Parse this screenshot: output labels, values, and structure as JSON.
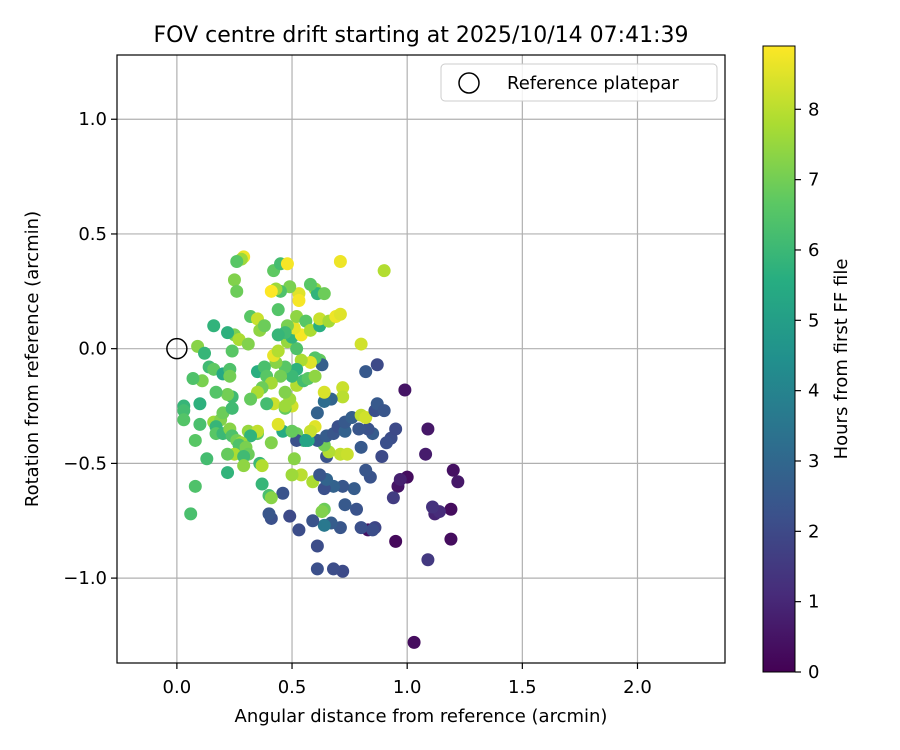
{
  "chart_data": {
    "type": "scatter",
    "title": "FOV centre drift starting at 2025/10/14 07:41:39",
    "xlabel": "Angular distance from reference (arcmin)",
    "ylabel": "Rotation from reference (arcmin)",
    "xlim": [
      -0.26,
      2.38
    ],
    "ylim": [
      -1.37,
      1.28
    ],
    "xticks": [
      0.0,
      0.5,
      1.0,
      1.5,
      2.0
    ],
    "xtick_labels": [
      "0.0",
      "0.5",
      "1.0",
      "1.5",
      "2.0"
    ],
    "yticks": [
      1.0,
      0.5,
      0.0,
      -0.5,
      -1.0
    ],
    "ytick_labels": [
      "1.0",
      "0.5",
      "0.0",
      "−0.5",
      "−1.0"
    ],
    "grid": true,
    "legend": {
      "label": "Reference platepar",
      "position": "top-right"
    },
    "reference_point": {
      "x": 0.0,
      "y": 0.0
    },
    "colorbar": {
      "label": "Hours from first FF file",
      "min": 0,
      "max": 8.9,
      "ticks": [
        0,
        1,
        2,
        3,
        4,
        5,
        6,
        7,
        8
      ],
      "tick_labels": [
        "0",
        "1",
        "2",
        "3",
        "4",
        "5",
        "6",
        "7",
        "8"
      ],
      "colormap": "viridis"
    },
    "points": [
      {
        "x": 1.03,
        "y": -1.28,
        "h": 0.3
      },
      {
        "x": 0.95,
        "y": -0.84,
        "h": 0.2
      },
      {
        "x": 1.19,
        "y": -0.83,
        "h": 0.3
      },
      {
        "x": 1.09,
        "y": -0.92,
        "h": 1.5
      },
      {
        "x": 1.19,
        "y": -0.7,
        "h": 0.3
      },
      {
        "x": 1.12,
        "y": -0.72,
        "h": 0.9
      },
      {
        "x": 1.14,
        "y": -0.71,
        "h": 1.1
      },
      {
        "x": 1.11,
        "y": -0.69,
        "h": 1.3
      },
      {
        "x": 1.2,
        "y": -0.53,
        "h": 0.4
      },
      {
        "x": 1.22,
        "y": -0.58,
        "h": 0.6
      },
      {
        "x": 0.96,
        "y": -0.6,
        "h": 0.5
      },
      {
        "x": 1.0,
        "y": -0.56,
        "h": 0.3
      },
      {
        "x": 0.97,
        "y": -0.57,
        "h": 0.8
      },
      {
        "x": 1.08,
        "y": -0.46,
        "h": 0.7
      },
      {
        "x": 1.09,
        "y": -0.35,
        "h": 0.6
      },
      {
        "x": 0.99,
        "y": -0.18,
        "h": 0.5
      },
      {
        "x": 0.94,
        "y": -0.65,
        "h": 1.6
      },
      {
        "x": 0.86,
        "y": -0.78,
        "h": 1.9
      },
      {
        "x": 0.83,
        "y": -0.79,
        "h": 0.4
      },
      {
        "x": 0.85,
        "y": -0.79,
        "h": 2.1
      },
      {
        "x": 0.8,
        "y": -0.78,
        "h": 2.2
      },
      {
        "x": 0.78,
        "y": -0.7,
        "h": 2.3
      },
      {
        "x": 0.72,
        "y": -0.97,
        "h": 2.0
      },
      {
        "x": 0.68,
        "y": -0.96,
        "h": 2.1
      },
      {
        "x": 0.61,
        "y": -0.96,
        "h": 2.2
      },
      {
        "x": 0.61,
        "y": -0.86,
        "h": 2.1
      },
      {
        "x": 0.71,
        "y": -0.78,
        "h": 2.4
      },
      {
        "x": 0.67,
        "y": -0.76,
        "h": 2.6
      },
      {
        "x": 0.64,
        "y": -0.77,
        "h": 3.6
      },
      {
        "x": 0.64,
        "y": -0.7,
        "h": 6.9
      },
      {
        "x": 0.59,
        "y": -0.75,
        "h": 2.3
      },
      {
        "x": 0.53,
        "y": -0.79,
        "h": 2.1
      },
      {
        "x": 0.49,
        "y": -0.73,
        "h": 2.0
      },
      {
        "x": 0.41,
        "y": -0.74,
        "h": 2.2
      },
      {
        "x": 0.4,
        "y": -0.72,
        "h": 2.4
      },
      {
        "x": 0.46,
        "y": -0.63,
        "h": 2.3
      },
      {
        "x": 0.4,
        "y": -0.64,
        "h": 6.3
      },
      {
        "x": 0.37,
        "y": -0.59,
        "h": 5.9
      },
      {
        "x": 0.73,
        "y": -0.68,
        "h": 2.5
      },
      {
        "x": 0.77,
        "y": -0.61,
        "h": 2.6
      },
      {
        "x": 0.72,
        "y": -0.6,
        "h": 2.4
      },
      {
        "x": 0.68,
        "y": -0.6,
        "h": 2.8
      },
      {
        "x": 0.64,
        "y": -0.61,
        "h": 2.2
      },
      {
        "x": 0.65,
        "y": -0.57,
        "h": 2.9
      },
      {
        "x": 0.59,
        "y": -0.58,
        "h": 7.8
      },
      {
        "x": 0.62,
        "y": -0.55,
        "h": 2.4
      },
      {
        "x": 0.54,
        "y": -0.55,
        "h": 8.0
      },
      {
        "x": 0.5,
        "y": -0.55,
        "h": 7.6
      },
      {
        "x": 0.84,
        "y": -0.56,
        "h": 2.3
      },
      {
        "x": 0.82,
        "y": -0.53,
        "h": 2.4
      },
      {
        "x": 0.89,
        "y": -0.47,
        "h": 2.0
      },
      {
        "x": 0.93,
        "y": -0.39,
        "h": 2.1
      },
      {
        "x": 0.95,
        "y": -0.35,
        "h": 2.0
      },
      {
        "x": 0.91,
        "y": -0.41,
        "h": 2.2
      },
      {
        "x": 0.85,
        "y": -0.37,
        "h": 2.6
      },
      {
        "x": 0.83,
        "y": -0.35,
        "h": 2.3
      },
      {
        "x": 0.79,
        "y": -0.35,
        "h": 2.4
      },
      {
        "x": 0.8,
        "y": -0.43,
        "h": 2.5
      },
      {
        "x": 0.71,
        "y": -0.46,
        "h": 8.1
      },
      {
        "x": 0.74,
        "y": -0.46,
        "h": 8.2
      },
      {
        "x": 0.65,
        "y": -0.47,
        "h": 2.3
      },
      {
        "x": 0.66,
        "y": -0.45,
        "h": 7.9
      },
      {
        "x": 0.64,
        "y": -0.42,
        "h": 7.0
      },
      {
        "x": 0.61,
        "y": -0.4,
        "h": 2.5
      },
      {
        "x": 0.57,
        "y": -0.4,
        "h": 5.4
      },
      {
        "x": 0.55,
        "y": -0.4,
        "h": 6.0
      },
      {
        "x": 0.52,
        "y": -0.37,
        "h": 6.9
      },
      {
        "x": 0.52,
        "y": -0.4,
        "h": 2.2
      },
      {
        "x": 0.51,
        "y": -0.48,
        "h": 7.3
      },
      {
        "x": 0.65,
        "y": -0.38,
        "h": 2.6
      },
      {
        "x": 0.68,
        "y": -0.37,
        "h": 2.4
      },
      {
        "x": 0.7,
        "y": -0.34,
        "h": 2.2
      },
      {
        "x": 0.73,
        "y": -0.36,
        "h": 2.8
      },
      {
        "x": 0.73,
        "y": -0.32,
        "h": 2.5
      },
      {
        "x": 0.76,
        "y": -0.3,
        "h": 2.7
      },
      {
        "x": 0.8,
        "y": -0.29,
        "h": 8.1
      },
      {
        "x": 0.82,
        "y": -0.3,
        "h": 8.3
      },
      {
        "x": 0.86,
        "y": -0.27,
        "h": 2.2
      },
      {
        "x": 0.87,
        "y": -0.24,
        "h": 2.5
      },
      {
        "x": 0.9,
        "y": -0.27,
        "h": 2.4
      },
      {
        "x": 0.87,
        "y": -0.07,
        "h": 2.0
      },
      {
        "x": 0.82,
        "y": -0.1,
        "h": 2.5
      },
      {
        "x": 0.72,
        "y": -0.17,
        "h": 8.2
      },
      {
        "x": 0.72,
        "y": -0.21,
        "h": 8.0
      },
      {
        "x": 0.67,
        "y": -0.22,
        "h": 2.9
      },
      {
        "x": 0.64,
        "y": -0.23,
        "h": 3.2
      },
      {
        "x": 0.64,
        "y": -0.19,
        "h": 8.4
      },
      {
        "x": 0.61,
        "y": -0.28,
        "h": 2.8
      },
      {
        "x": 0.6,
        "y": -0.34,
        "h": 8.5
      },
      {
        "x": 0.58,
        "y": -0.36,
        "h": 8.2
      },
      {
        "x": 0.56,
        "y": -0.4,
        "h": 5.2
      },
      {
        "x": 0.5,
        "y": -0.25,
        "h": 8.3
      },
      {
        "x": 0.49,
        "y": -0.22,
        "h": 7.6
      },
      {
        "x": 0.47,
        "y": -0.19,
        "h": 7.2
      },
      {
        "x": 0.47,
        "y": -0.26,
        "h": 6.8
      },
      {
        "x": 0.52,
        "y": -0.16,
        "h": 7.9
      },
      {
        "x": 0.55,
        "y": -0.14,
        "h": 6.2
      },
      {
        "x": 0.57,
        "y": -0.13,
        "h": 6.6
      },
      {
        "x": 0.6,
        "y": -0.12,
        "h": 7.4
      },
      {
        "x": 0.62,
        "y": -0.05,
        "h": 6.8
      },
      {
        "x": 0.63,
        "y": -0.07,
        "h": 2.7
      },
      {
        "x": 0.6,
        "y": -0.04,
        "h": 6.5
      },
      {
        "x": 0.58,
        "y": -0.06,
        "h": 8.5
      },
      {
        "x": 0.54,
        "y": -0.05,
        "h": 7.8
      },
      {
        "x": 0.52,
        "y": -0.09,
        "h": 5.7
      },
      {
        "x": 0.5,
        "y": -0.12,
        "h": 6.0
      },
      {
        "x": 0.47,
        "y": -0.08,
        "h": 6.6
      },
      {
        "x": 0.45,
        "y": -0.12,
        "h": 7.0
      },
      {
        "x": 0.43,
        "y": -0.06,
        "h": 7.3
      },
      {
        "x": 0.42,
        "y": -0.03,
        "h": 8.6
      },
      {
        "x": 0.44,
        "y": -0.01,
        "h": 7.9
      },
      {
        "x": 0.48,
        "y": 0.03,
        "h": 7.5
      },
      {
        "x": 0.52,
        "y": 0.0,
        "h": 6.4
      },
      {
        "x": 0.5,
        "y": 0.05,
        "h": 5.8
      },
      {
        "x": 0.54,
        "y": 0.06,
        "h": 8.8
      },
      {
        "x": 0.51,
        "y": 0.09,
        "h": 8.6
      },
      {
        "x": 0.48,
        "y": 0.1,
        "h": 7.1
      },
      {
        "x": 0.47,
        "y": 0.07,
        "h": 6.1
      },
      {
        "x": 0.44,
        "y": 0.06,
        "h": 5.9
      },
      {
        "x": 0.52,
        "y": 0.14,
        "h": 7.4
      },
      {
        "x": 0.56,
        "y": 0.12,
        "h": 6.6
      },
      {
        "x": 0.58,
        "y": 0.08,
        "h": 7.8
      },
      {
        "x": 0.62,
        "y": 0.1,
        "h": 5.6
      },
      {
        "x": 0.62,
        "y": 0.13,
        "h": 8.2
      },
      {
        "x": 0.66,
        "y": 0.12,
        "h": 7.7
      },
      {
        "x": 0.69,
        "y": 0.14,
        "h": 8.7
      },
      {
        "x": 0.71,
        "y": 0.15,
        "h": 8.5
      },
      {
        "x": 0.8,
        "y": 0.02,
        "h": 8.3
      },
      {
        "x": 0.6,
        "y": 0.26,
        "h": 7.4
      },
      {
        "x": 0.61,
        "y": 0.24,
        "h": 5.8
      },
      {
        "x": 0.64,
        "y": 0.24,
        "h": 6.9
      },
      {
        "x": 0.58,
        "y": 0.28,
        "h": 6.6
      },
      {
        "x": 0.53,
        "y": 0.24,
        "h": 8.5
      },
      {
        "x": 0.53,
        "y": 0.21,
        "h": 8.8
      },
      {
        "x": 0.49,
        "y": 0.27,
        "h": 7.1
      },
      {
        "x": 0.45,
        "y": 0.25,
        "h": 6.4
      },
      {
        "x": 0.43,
        "y": 0.26,
        "h": 7.6
      },
      {
        "x": 0.41,
        "y": 0.25,
        "h": 8.9
      },
      {
        "x": 0.44,
        "y": 0.17,
        "h": 6.5
      },
      {
        "x": 0.42,
        "y": 0.34,
        "h": 6.7
      },
      {
        "x": 0.45,
        "y": 0.37,
        "h": 6.2
      },
      {
        "x": 0.48,
        "y": 0.37,
        "h": 8.8
      },
      {
        "x": 0.71,
        "y": 0.38,
        "h": 8.7
      },
      {
        "x": 0.9,
        "y": 0.34,
        "h": 7.9
      },
      {
        "x": 0.29,
        "y": 0.4,
        "h": 8.7
      },
      {
        "x": 0.28,
        "y": 0.39,
        "h": 7.6
      },
      {
        "x": 0.26,
        "y": 0.38,
        "h": 6.6
      },
      {
        "x": 0.25,
        "y": 0.3,
        "h": 7.2
      },
      {
        "x": 0.26,
        "y": 0.25,
        "h": 6.9
      },
      {
        "x": 0.32,
        "y": 0.14,
        "h": 6.6
      },
      {
        "x": 0.35,
        "y": 0.13,
        "h": 8.2
      },
      {
        "x": 0.36,
        "y": 0.08,
        "h": 7.4
      },
      {
        "x": 0.38,
        "y": 0.1,
        "h": 6.9
      },
      {
        "x": 0.25,
        "y": 0.06,
        "h": 7.1
      },
      {
        "x": 0.22,
        "y": 0.07,
        "h": 5.7
      },
      {
        "x": 0.27,
        "y": 0.04,
        "h": 7.8
      },
      {
        "x": 0.31,
        "y": 0.02,
        "h": 7.2
      },
      {
        "x": 0.24,
        "y": -0.01,
        "h": 6.6
      },
      {
        "x": 0.16,
        "y": 0.1,
        "h": 5.8
      },
      {
        "x": 0.09,
        "y": 0.01,
        "h": 7.3
      },
      {
        "x": 0.12,
        "y": -0.02,
        "h": 5.9
      },
      {
        "x": 0.14,
        "y": -0.08,
        "h": 6.1
      },
      {
        "x": 0.16,
        "y": -0.09,
        "h": 6.7
      },
      {
        "x": 0.2,
        "y": -0.11,
        "h": 5.4
      },
      {
        "x": 0.23,
        "y": -0.09,
        "h": 6.4
      },
      {
        "x": 0.23,
        "y": -0.12,
        "h": 7.0
      },
      {
        "x": 0.35,
        "y": -0.1,
        "h": 5.6
      },
      {
        "x": 0.38,
        "y": -0.08,
        "h": 6.3
      },
      {
        "x": 0.39,
        "y": -0.12,
        "h": 6.6
      },
      {
        "x": 0.41,
        "y": -0.15,
        "h": 7.7
      },
      {
        "x": 0.37,
        "y": -0.17,
        "h": 6.9
      },
      {
        "x": 0.35,
        "y": -0.19,
        "h": 7.8
      },
      {
        "x": 0.42,
        "y": -0.24,
        "h": 8.2
      },
      {
        "x": 0.39,
        "y": -0.24,
        "h": 6.2
      },
      {
        "x": 0.32,
        "y": -0.22,
        "h": 6.8
      },
      {
        "x": 0.24,
        "y": -0.21,
        "h": 6.1
      },
      {
        "x": 0.22,
        "y": -0.2,
        "h": 7.0
      },
      {
        "x": 0.17,
        "y": -0.19,
        "h": 6.5
      },
      {
        "x": 0.11,
        "y": -0.14,
        "h": 7.1
      },
      {
        "x": 0.07,
        "y": -0.13,
        "h": 6.4
      },
      {
        "x": 0.03,
        "y": -0.25,
        "h": 5.9
      },
      {
        "x": 0.03,
        "y": -0.27,
        "h": 6.2
      },
      {
        "x": 0.03,
        "y": -0.31,
        "h": 6.5
      },
      {
        "x": 0.1,
        "y": -0.24,
        "h": 5.7
      },
      {
        "x": 0.1,
        "y": -0.33,
        "h": 6.3
      },
      {
        "x": 0.16,
        "y": -0.32,
        "h": 7.6
      },
      {
        "x": 0.19,
        "y": -0.31,
        "h": 7.2
      },
      {
        "x": 0.2,
        "y": -0.28,
        "h": 6.9
      },
      {
        "x": 0.24,
        "y": -0.26,
        "h": 6.1
      },
      {
        "x": 0.17,
        "y": -0.34,
        "h": 5.9
      },
      {
        "x": 0.17,
        "y": -0.37,
        "h": 6.6
      },
      {
        "x": 0.2,
        "y": -0.37,
        "h": 6.0
      },
      {
        "x": 0.23,
        "y": -0.35,
        "h": 7.3
      },
      {
        "x": 0.24,
        "y": -0.38,
        "h": 6.4
      },
      {
        "x": 0.26,
        "y": -0.4,
        "h": 7.0
      },
      {
        "x": 0.31,
        "y": -0.36,
        "h": 7.5
      },
      {
        "x": 0.35,
        "y": -0.37,
        "h": 6.7
      },
      {
        "x": 0.35,
        "y": -0.36,
        "h": 8.1
      },
      {
        "x": 0.32,
        "y": -0.38,
        "h": 5.8
      },
      {
        "x": 0.28,
        "y": -0.41,
        "h": 7.6
      },
      {
        "x": 0.27,
        "y": -0.42,
        "h": 6.4
      },
      {
        "x": 0.3,
        "y": -0.43,
        "h": 7.1
      },
      {
        "x": 0.31,
        "y": -0.46,
        "h": 6.9
      },
      {
        "x": 0.25,
        "y": -0.46,
        "h": 7.8
      },
      {
        "x": 0.22,
        "y": -0.46,
        "h": 6.8
      },
      {
        "x": 0.29,
        "y": -0.47,
        "h": 6.1
      },
      {
        "x": 0.29,
        "y": -0.51,
        "h": 7.4
      },
      {
        "x": 0.36,
        "y": -0.5,
        "h": 6.0
      },
      {
        "x": 0.37,
        "y": -0.51,
        "h": 7.9
      },
      {
        "x": 0.41,
        "y": -0.41,
        "h": 7.2
      },
      {
        "x": 0.46,
        "y": -0.36,
        "h": 5.5
      },
      {
        "x": 0.5,
        "y": -0.36,
        "h": 6.8
      },
      {
        "x": 0.44,
        "y": -0.33,
        "h": 8.5
      },
      {
        "x": 0.47,
        "y": -0.25,
        "h": 7.6
      },
      {
        "x": 0.13,
        "y": -0.48,
        "h": 6.2
      },
      {
        "x": 0.22,
        "y": -0.54,
        "h": 5.8
      },
      {
        "x": 0.08,
        "y": -0.4,
        "h": 6.6
      },
      {
        "x": 0.08,
        "y": -0.6,
        "h": 6.4
      },
      {
        "x": 0.06,
        "y": -0.72,
        "h": 6.3
      },
      {
        "x": 0.41,
        "y": -0.65,
        "h": 7.3
      },
      {
        "x": 0.63,
        "y": -0.71,
        "h": 7.2
      }
    ]
  }
}
